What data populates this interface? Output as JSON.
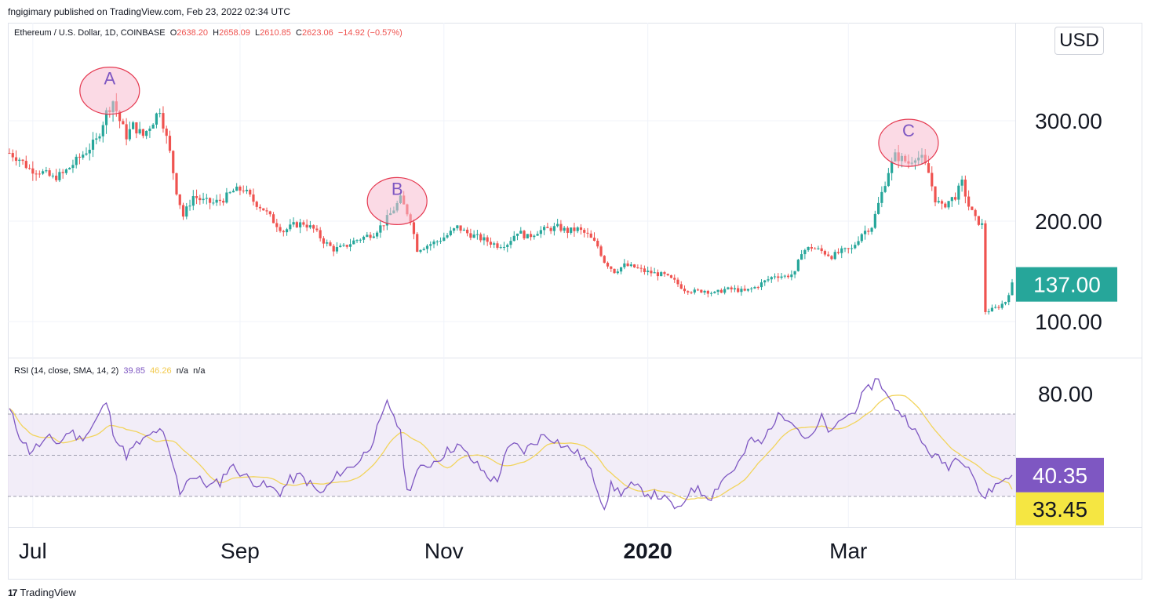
{
  "header": {
    "published_line": "fngigimary published on TradingView.com, Feb 23, 2022 02:34 UTC"
  },
  "legend": {
    "symbol": "Ethereum / U.S. Dollar, 1D, COINBASE",
    "open_label": "O",
    "open": "2638.20",
    "high_label": "H",
    "high": "2658.09",
    "low_label": "L",
    "low": "2610.85",
    "close_label": "C",
    "close": "2623.06",
    "change": "−14.92 (−0.57%)"
  },
  "rsi_legend": {
    "label": "RSI (14, close, SMA, 14, 2)",
    "rsi": "39.85",
    "sma": "46.26",
    "na1": "n/a",
    "na2": "n/a"
  },
  "currency_button": "USD",
  "footer": {
    "brand": "TradingView",
    "mark": "17"
  },
  "colors": {
    "up": "#26a69a",
    "down": "#ef5350",
    "rsi": "#7e57c2",
    "rsi_sma": "#f2d45c",
    "band": "#ede7f6",
    "price_badge": "#26a69a",
    "rsi_badge": "#7e57c2",
    "sma_badge": "#f5e642",
    "circle_fill": "#f8bbd0",
    "circle_stroke": "#e53950",
    "circle_text": "#7e57c2"
  },
  "chart_data": [
    {
      "type": "candlestick",
      "title": "Ethereum / U.S. Dollar, 1D, COINBASE",
      "price_axis": {
        "ticks": [
          "300.00",
          "200.00",
          "100.00"
        ],
        "tick_values": [
          300,
          200,
          100
        ],
        "ylim": [
          65,
          395
        ]
      },
      "last_price_label": "137.00",
      "last_price": 137,
      "x_axis_labels": [
        "Jul",
        "Sep",
        "Nov",
        "2020",
        "Mar"
      ],
      "x_axis_label_day": [
        7,
        69,
        130,
        191,
        251
      ],
      "x_axis_bold_label": "2020",
      "annotations": [
        {
          "label": "A",
          "day": 30,
          "price": 330
        },
        {
          "label": "B",
          "day": 116,
          "price": 220
        },
        {
          "label": "C",
          "day": 269,
          "price": 278
        }
      ],
      "keyframes_day_close": [
        [
          0,
          268
        ],
        [
          3,
          262
        ],
        [
          6,
          252
        ],
        [
          9,
          250
        ],
        [
          13,
          243
        ],
        [
          16,
          247
        ],
        [
          20,
          260
        ],
        [
          23,
          270
        ],
        [
          26,
          280
        ],
        [
          29,
          308
        ],
        [
          31,
          320
        ],
        [
          33,
          300
        ],
        [
          35,
          285
        ],
        [
          37,
          295
        ],
        [
          40,
          285
        ],
        [
          43,
          300
        ],
        [
          45,
          312
        ],
        [
          48,
          268
        ],
        [
          50,
          230
        ],
        [
          52,
          205
        ],
        [
          55,
          225
        ],
        [
          58,
          220
        ],
        [
          61,
          218
        ],
        [
          64,
          222
        ],
        [
          67,
          230
        ],
        [
          70,
          232
        ],
        [
          73,
          220
        ],
        [
          76,
          212
        ],
        [
          79,
          200
        ],
        [
          82,
          190
        ],
        [
          85,
          196
        ],
        [
          88,
          198
        ],
        [
          91,
          192
        ],
        [
          94,
          180
        ],
        [
          97,
          172
        ],
        [
          100,
          174
        ],
        [
          103,
          180
        ],
        [
          106,
          184
        ],
        [
          109,
          188
        ],
        [
          112,
          198
        ],
        [
          115,
          212
        ],
        [
          117,
          222
        ],
        [
          120,
          202
        ],
        [
          122,
          172
        ],
        [
          125,
          176
        ],
        [
          128,
          180
        ],
        [
          131,
          186
        ],
        [
          134,
          194
        ],
        [
          137,
          188
        ],
        [
          140,
          184
        ],
        [
          143,
          180
        ],
        [
          146,
          176
        ],
        [
          149,
          178
        ],
        [
          152,
          190
        ],
        [
          155,
          184
        ],
        [
          158,
          190
        ],
        [
          161,
          192
        ],
        [
          164,
          194
        ],
        [
          167,
          190
        ],
        [
          170,
          192
        ],
        [
          173,
          186
        ],
        [
          176,
          175
        ],
        [
          178,
          160
        ],
        [
          181,
          150
        ],
        [
          184,
          156
        ],
        [
          187,
          154
        ],
        [
          190,
          150
        ],
        [
          193,
          148
        ],
        [
          196,
          146
        ],
        [
          199,
          140
        ],
        [
          202,
          132
        ],
        [
          205,
          130
        ],
        [
          208,
          131
        ],
        [
          211,
          128
        ],
        [
          214,
          132
        ],
        [
          217,
          132
        ],
        [
          220,
          130
        ],
        [
          223,
          134
        ],
        [
          226,
          140
        ],
        [
          229,
          146
        ],
        [
          232,
          145
        ],
        [
          235,
          148
        ],
        [
          237,
          170
        ],
        [
          240,
          174
        ],
        [
          243,
          170
        ],
        [
          246,
          165
        ],
        [
          249,
          170
        ],
        [
          252,
          172
        ],
        [
          255,
          188
        ],
        [
          258,
          195
        ],
        [
          261,
          228
        ],
        [
          263,
          250
        ],
        [
          265,
          265
        ],
        [
          267,
          262
        ],
        [
          269,
          258
        ],
        [
          271,
          265
        ],
        [
          273,
          262
        ],
        [
          275,
          248
        ],
        [
          277,
          222
        ],
        [
          279,
          214
        ],
        [
          281,
          220
        ],
        [
          283,
          225
        ],
        [
          285,
          238
        ],
        [
          287,
          215
        ],
        [
          289,
          202
        ],
        [
          291,
          196
        ],
        [
          292,
          110
        ],
        [
          294,
          112
        ],
        [
          296,
          115
        ],
        [
          298,
          120
        ],
        [
          300,
          137
        ]
      ]
    },
    {
      "type": "line",
      "title": "RSI (14, close, SMA, 14, 2)",
      "series": [
        {
          "name": "RSI",
          "last": 40.35
        },
        {
          "name": "SMA",
          "last": 33.45
        }
      ],
      "y_axis": {
        "ticks": [
          "80.00"
        ],
        "tick_values": [
          80
        ],
        "ylim": [
          16,
          89
        ]
      },
      "bands": {
        "upper": 70,
        "middle": 50,
        "lower": 30
      },
      "last_labels": {
        "rsi": "40.35",
        "sma": "33.45"
      },
      "keyframes_day_rsi": [
        [
          0,
          72
        ],
        [
          3,
          60
        ],
        [
          6,
          52
        ],
        [
          9,
          55
        ],
        [
          12,
          58
        ],
        [
          15,
          56
        ],
        [
          18,
          62
        ],
        [
          21,
          58
        ],
        [
          24,
          62
        ],
        [
          27,
          70
        ],
        [
          29,
          76
        ],
        [
          31,
          62
        ],
        [
          33,
          55
        ],
        [
          35,
          50
        ],
        [
          38,
          55
        ],
        [
          41,
          58
        ],
        [
          44,
          62
        ],
        [
          46,
          60
        ],
        [
          49,
          45
        ],
        [
          51,
          32
        ],
        [
          54,
          40
        ],
        [
          57,
          38
        ],
        [
          60,
          35
        ],
        [
          63,
          37
        ],
        [
          66,
          45
        ],
        [
          69,
          42
        ],
        [
          72,
          38
        ],
        [
          75,
          36
        ],
        [
          78,
          34
        ],
        [
          81,
          32
        ],
        [
          84,
          38
        ],
        [
          87,
          40
        ],
        [
          90,
          36
        ],
        [
          93,
          31
        ],
        [
          96,
          36
        ],
        [
          99,
          42
        ],
        [
          102,
          44
        ],
        [
          105,
          48
        ],
        [
          108,
          55
        ],
        [
          111,
          66
        ],
        [
          113,
          75
        ],
        [
          115,
          70
        ],
        [
          117,
          60
        ],
        [
          119,
          32
        ],
        [
          122,
          42
        ],
        [
          125,
          45
        ],
        [
          128,
          48
        ],
        [
          131,
          52
        ],
        [
          134,
          55
        ],
        [
          137,
          50
        ],
        [
          140,
          45
        ],
        [
          143,
          40
        ],
        [
          146,
          37
        ],
        [
          148,
          50
        ],
        [
          151,
          55
        ],
        [
          154,
          52
        ],
        [
          157,
          56
        ],
        [
          160,
          60
        ],
        [
          163,
          58
        ],
        [
          166,
          54
        ],
        [
          169,
          52
        ],
        [
          172,
          48
        ],
        [
          175,
          38
        ],
        [
          178,
          25
        ],
        [
          180,
          35
        ],
        [
          183,
          32
        ],
        [
          186,
          35
        ],
        [
          189,
          33
        ],
        [
          192,
          31
        ],
        [
          195,
          30
        ],
        [
          198,
          26
        ],
        [
          201,
          23
        ],
        [
          204,
          35
        ],
        [
          207,
          32
        ],
        [
          210,
          30
        ],
        [
          213,
          38
        ],
        [
          216,
          42
        ],
        [
          219,
          48
        ],
        [
          222,
          58
        ],
        [
          225,
          55
        ],
        [
          228,
          65
        ],
        [
          231,
          70
        ],
        [
          234,
          68
        ],
        [
          237,
          60
        ],
        [
          240,
          58
        ],
        [
          243,
          68
        ],
        [
          246,
          60
        ],
        [
          249,
          68
        ],
        [
          252,
          70
        ],
        [
          255,
          78
        ],
        [
          258,
          84
        ],
        [
          260,
          88
        ],
        [
          262,
          80
        ],
        [
          264,
          75
        ],
        [
          266,
          72
        ],
        [
          268,
          68
        ],
        [
          270,
          65
        ],
        [
          272,
          58
        ],
        [
          275,
          52
        ],
        [
          278,
          48
        ],
        [
          281,
          45
        ],
        [
          284,
          50
        ],
        [
          287,
          45
        ],
        [
          289,
          38
        ],
        [
          291,
          28
        ],
        [
          293,
          33
        ],
        [
          295,
          35
        ],
        [
          297,
          38
        ],
        [
          300,
          40.35
        ]
      ]
    }
  ]
}
